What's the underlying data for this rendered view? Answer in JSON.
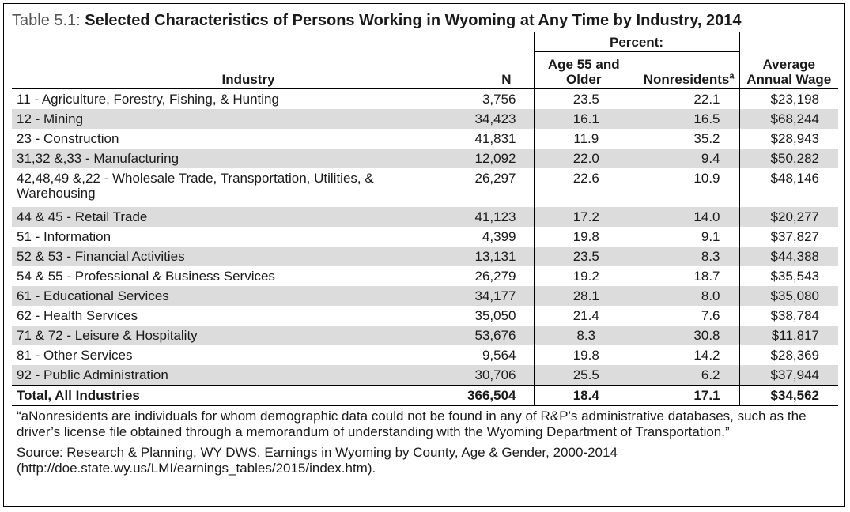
{
  "title": {
    "label": "Table 5.1:",
    "text": "Selected Characteristics of Persons Working in Wyoming at Any Time by Industry, 2014"
  },
  "headers": {
    "percent": "Percent:",
    "industry": "Industry",
    "n": "N",
    "age": "Age 55 and Older",
    "nonresidents": "Nonresidents",
    "nonresidents_sup": "a",
    "wage": "Average Annual Wage"
  },
  "rows": [
    {
      "industry": "11 - Agriculture, Forestry, Fishing, & Hunting",
      "n": "3,756",
      "age": "23.5",
      "non": "22.1",
      "wage": "$23,198"
    },
    {
      "industry": "12 - Mining",
      "n": "34,423",
      "age": "16.1",
      "non": "16.5",
      "wage": "$68,244"
    },
    {
      "industry": "23 - Construction",
      "n": "41,831",
      "age": "11.9",
      "non": "35.2",
      "wage": "$28,943"
    },
    {
      "industry": "31,32 &,33 - Manufacturing",
      "n": "12,092",
      "age": "22.0",
      "non": "9.4",
      "wage": "$50,282"
    },
    {
      "industry": "42,48,49 &,22 - Wholesale Trade, Transportation, Utilities, & Warehousing",
      "n": "26,297",
      "age": "22.6",
      "non": "10.9",
      "wage": "$48,146"
    },
    {
      "industry": "44 & 45 - Retail Trade",
      "n": "41,123",
      "age": "17.2",
      "non": "14.0",
      "wage": "$20,277"
    },
    {
      "industry": "51 - Information",
      "n": "4,399",
      "age": "19.8",
      "non": "9.1",
      "wage": "$37,827"
    },
    {
      "industry": "52 & 53 - Financial Activities",
      "n": "13,131",
      "age": "23.5",
      "non": "8.3",
      "wage": "$44,388"
    },
    {
      "industry": "54 & 55 - Professional & Business Services",
      "n": "26,279",
      "age": "19.2",
      "non": "18.7",
      "wage": "$35,543"
    },
    {
      "industry": "61 - Educational Services",
      "n": "34,177",
      "age": "28.1",
      "non": "8.0",
      "wage": "$35,080"
    },
    {
      "industry": "62 - Health Services",
      "n": "35,050",
      "age": "21.4",
      "non": "7.6",
      "wage": "$38,784"
    },
    {
      "industry": "71 & 72 - Leisure & Hospitality",
      "n": "53,676",
      "age": "8.3",
      "non": "30.8",
      "wage": "$11,817"
    },
    {
      "industry": "81 - Other Services",
      "n": "9,564",
      "age": "19.8",
      "non": "14.2",
      "wage": "$28,369"
    },
    {
      "industry": "92 - Public Administration",
      "n": "30,706",
      "age": "25.5",
      "non": "6.2",
      "wage": "$37,944"
    }
  ],
  "total": {
    "industry": "Total, All Industries",
    "n": "366,504",
    "age": "18.4",
    "non": "17.1",
    "wage": "$34,562"
  },
  "footnote": "“aNonresidents are individuals for whom demographic data could not be found in any of R&P’s administrative databases, such as the driver’s license file obtained through a memorandum of understanding with the Wyoming Department of Transportation.”",
  "source": "Source: Research & Planning, WY DWS. Earnings in Wyoming by County, Age & Gender, 2000-2014 (http://doe.state.wy.us/LMI/earnings_tables/2015/index.htm)."
}
